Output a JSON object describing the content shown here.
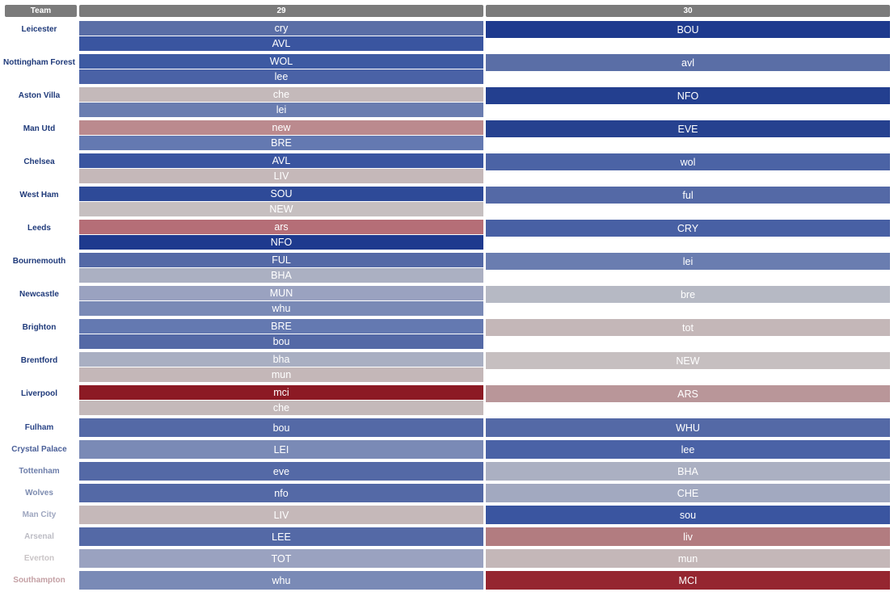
{
  "header": {
    "team_label": "Team",
    "weeks": [
      "29",
      "30"
    ]
  },
  "colors": {
    "header_bg": "#7b7b7b"
  },
  "teams": [
    {
      "name": "Leicester",
      "color": "#1f3a7a",
      "w29": [
        {
          "opp": "cry",
          "color": "#5a6ea6"
        },
        {
          "opp": "AVL",
          "color": "#3a55a0"
        }
      ],
      "w30": [
        {
          "opp": "BOU",
          "color": "#1e3a8e"
        }
      ]
    },
    {
      "name": "Nottingham Forest",
      "color": "#1f3a7a",
      "w29": [
        {
          "opp": "WOL",
          "color": "#3d5aa2"
        },
        {
          "opp": "lee",
          "color": "#4a62a6"
        }
      ],
      "w30": [
        {
          "opp": "avl",
          "color": "#5a6ea6"
        }
      ]
    },
    {
      "name": "Aston Villa",
      "color": "#1f3a7a",
      "w29": [
        {
          "opp": "che",
          "color": "#c4b9ba"
        },
        {
          "opp": "lei",
          "color": "#6a7db0"
        }
      ],
      "w30": [
        {
          "opp": "NFO",
          "color": "#233f8f"
        }
      ]
    },
    {
      "name": "Man Utd",
      "color": "#1f3a7a",
      "w29": [
        {
          "opp": "new",
          "color": "#bb8a8e"
        },
        {
          "opp": "BRE",
          "color": "#6479b1"
        }
      ],
      "w30": [
        {
          "opp": "EVE",
          "color": "#26418f"
        }
      ]
    },
    {
      "name": "Chelsea",
      "color": "#1f3a7a",
      "w29": [
        {
          "opp": "AVL",
          "color": "#3a55a0"
        },
        {
          "opp": "LIV",
          "color": "#c5b8b9"
        }
      ],
      "w30": [
        {
          "opp": "wol",
          "color": "#4b63a5"
        }
      ]
    },
    {
      "name": "West Ham",
      "color": "#1f3a7a",
      "w29": [
        {
          "opp": "SOU",
          "color": "#2e4a98"
        },
        {
          "opp": "NEW",
          "color": "#c6bfc0"
        }
      ],
      "w30": [
        {
          "opp": "ful",
          "color": "#5469a6"
        }
      ]
    },
    {
      "name": "Leeds",
      "color": "#1f3a7a",
      "w29": [
        {
          "opp": "ars",
          "color": "#b56e77"
        },
        {
          "opp": "NFO",
          "color": "#1e3a8e"
        }
      ],
      "w30": [
        {
          "opp": "CRY",
          "color": "#4860a4"
        }
      ]
    },
    {
      "name": "Bournemouth",
      "color": "#1f3a7a",
      "w29": [
        {
          "opp": "FUL",
          "color": "#5469a6"
        },
        {
          "opp": "BHA",
          "color": "#abb0c2"
        }
      ],
      "w30": [
        {
          "opp": "lei",
          "color": "#6a7db0"
        }
      ]
    },
    {
      "name": "Newcastle",
      "color": "#1f3a7a",
      "w29": [
        {
          "opp": "MUN",
          "color": "#9aa2c0"
        },
        {
          "opp": "whu",
          "color": "#7a8ab6"
        }
      ],
      "w30": [
        {
          "opp": "bre",
          "color": "#b6b9c4"
        }
      ]
    },
    {
      "name": "Brighton",
      "color": "#1f3a7a",
      "w29": [
        {
          "opp": "BRE",
          "color": "#6479b1"
        },
        {
          "opp": "bou",
          "color": "#5469a6"
        }
      ],
      "w30": [
        {
          "opp": "tot",
          "color": "#c4b7b8"
        }
      ]
    },
    {
      "name": "Brentford",
      "color": "#1f3a7a",
      "w29": [
        {
          "opp": "bha",
          "color": "#a9afc2"
        },
        {
          "opp": "mun",
          "color": "#c4b7b8"
        }
      ],
      "w30": [
        {
          "opp": "NEW",
          "color": "#c6bfc0"
        }
      ]
    },
    {
      "name": "Liverpool",
      "color": "#1f3a7a",
      "w29": [
        {
          "opp": "mci",
          "color": "#8c1a24"
        },
        {
          "opp": "che",
          "color": "#c4b9ba"
        }
      ],
      "w30": [
        {
          "opp": "ARS",
          "color": "#b99699"
        }
      ]
    },
    {
      "name": "Fulham",
      "color": "#2c4688",
      "w29": [
        {
          "opp": "bou",
          "color": "#5469a6"
        }
      ],
      "w30": [
        {
          "opp": "WHU",
          "color": "#5469a6"
        }
      ]
    },
    {
      "name": "Crystal Palace",
      "color": "#4a5f98",
      "w29": [
        {
          "opp": "LEI",
          "color": "#7a8ab6"
        }
      ],
      "w30": [
        {
          "opp": "lee",
          "color": "#4a62a6"
        }
      ]
    },
    {
      "name": "Tottenham",
      "color": "#6d7eaa",
      "w29": [
        {
          "opp": "eve",
          "color": "#5469a6"
        }
      ],
      "w30": [
        {
          "opp": "BHA",
          "color": "#abb0c2"
        }
      ]
    },
    {
      "name": "Wolves",
      "color": "#7d8cb0",
      "w29": [
        {
          "opp": "nfo",
          "color": "#5469a6"
        }
      ],
      "w30": [
        {
          "opp": "CHE",
          "color": "#a2a9c0"
        }
      ]
    },
    {
      "name": "Man City",
      "color": "#9ea6bf",
      "w29": [
        {
          "opp": "LIV",
          "color": "#c5b8b9"
        }
      ],
      "w30": [
        {
          "opp": "sou",
          "color": "#3a55a0"
        }
      ]
    },
    {
      "name": "Arsenal",
      "color": "#bcbcc4",
      "w29": [
        {
          "opp": "LEE",
          "color": "#5469a6"
        }
      ],
      "w30": [
        {
          "opp": "liv",
          "color": "#b27c80"
        }
      ]
    },
    {
      "name": "Everton",
      "color": "#c9c4c6",
      "w29": [
        {
          "opp": "TOT",
          "color": "#9aa2c0"
        }
      ],
      "w30": [
        {
          "opp": "mun",
          "color": "#c4b7b8"
        }
      ]
    },
    {
      "name": "Southampton",
      "color": "#c4a0a4",
      "w29": [
        {
          "opp": "whu",
          "color": "#7a8ab6"
        }
      ],
      "w30": [
        {
          "opp": "MCI",
          "color": "#952630"
        }
      ]
    }
  ]
}
